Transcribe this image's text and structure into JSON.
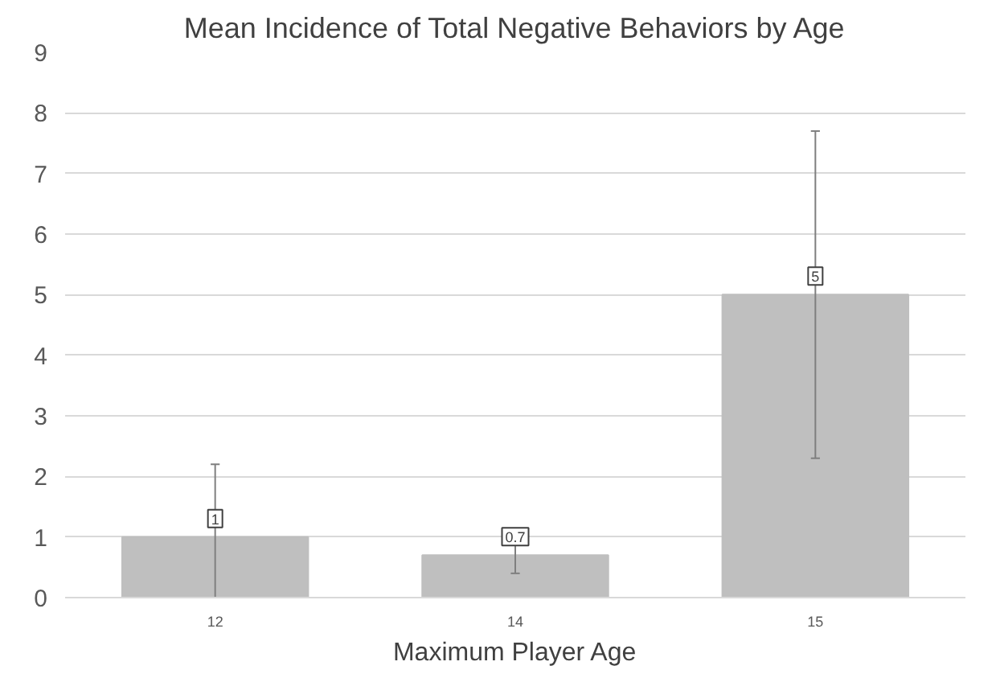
{
  "chart_data": {
    "type": "bar",
    "title": "Mean Incidence of Total Negative Behaviors by Age",
    "xlabel": "Maximum Player Age",
    "categories": [
      "12",
      "14",
      "15"
    ],
    "values": [
      1,
      0.7,
      5
    ],
    "errors": [
      [
        0,
        2.2
      ],
      [
        0.4,
        1.0
      ],
      [
        2.3,
        7.7
      ]
    ],
    "color": "#bfbfbf",
    "ylim": [
      0,
      9
    ],
    "yticks": [
      0,
      1,
      2,
      3,
      4,
      5,
      6,
      7,
      8,
      9
    ],
    "grid": "y",
    "data_labels": true
  }
}
